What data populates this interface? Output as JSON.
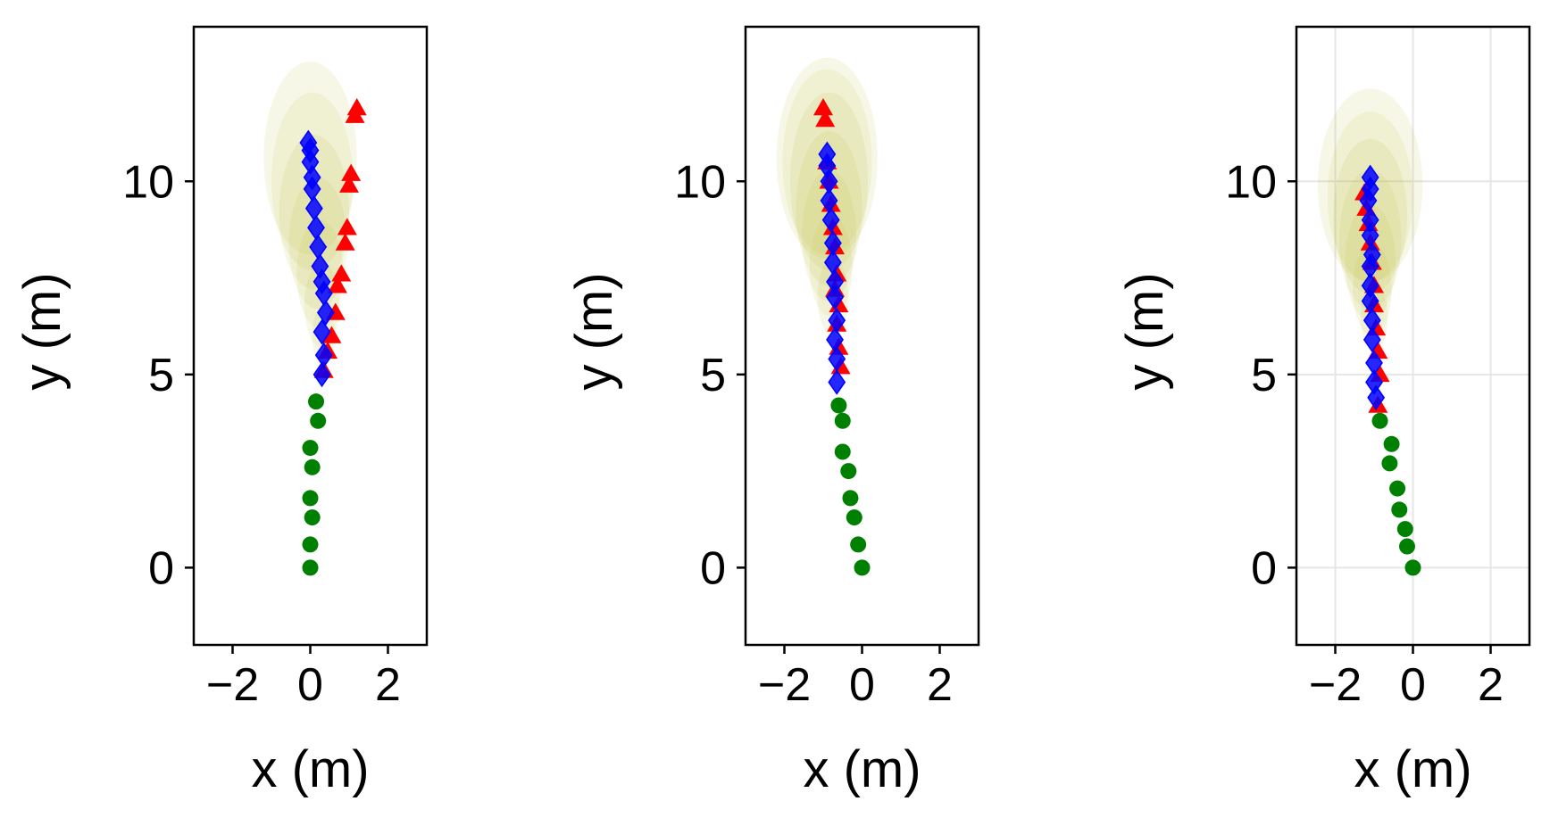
{
  "figure": {
    "background": "#ffffff",
    "colors": {
      "history": "#008000",
      "ground_truth": "#ff0000",
      "prediction": "#0000ff",
      "uncertainty": "#bdbd3a",
      "grid": "#e6e6e6"
    }
  },
  "chart_data": [
    {
      "type": "scatter",
      "xlabel": "x (m)",
      "ylabel": "y (m)",
      "xlim": [
        -3,
        3
      ],
      "ylim": [
        -2,
        14
      ],
      "xticks": [
        -2,
        0,
        2
      ],
      "xtick_labels": [
        "−2",
        "0",
        "2"
      ],
      "yticks": [
        0,
        5,
        10
      ],
      "ytick_labels": [
        "0",
        "5",
        "10"
      ],
      "grid": false,
      "series": [
        {
          "marker": "circle",
          "color": "#008000",
          "x": [
            0.0,
            0.0,
            0.05,
            0.0,
            0.05,
            0.0,
            0.2,
            0.15
          ],
          "y": [
            0.0,
            0.6,
            1.3,
            1.8,
            2.6,
            3.1,
            3.8,
            4.3
          ]
        },
        {
          "marker": "triangle",
          "color": "#ff0000",
          "x": [
            0.35,
            0.45,
            0.55,
            0.65,
            0.7,
            0.8,
            0.9,
            0.95,
            1.0,
            1.05,
            1.15,
            1.2
          ],
          "y": [
            5.1,
            5.6,
            6.0,
            6.6,
            7.3,
            7.6,
            8.4,
            8.8,
            9.9,
            10.2,
            11.7,
            11.9
          ]
        },
        {
          "marker": "diamond",
          "color": "#0000ff",
          "x": [
            0.3,
            0.35,
            0.3,
            0.4,
            0.35,
            0.3,
            0.25,
            0.2,
            0.15,
            0.1,
            0.05,
            0.05,
            0.0,
            0.0,
            -0.05
          ],
          "y": [
            5.0,
            5.5,
            6.1,
            6.6,
            7.1,
            7.4,
            7.8,
            8.3,
            8.8,
            9.3,
            9.8,
            10.1,
            10.5,
            10.8,
            11.0
          ]
        }
      ],
      "uncertainty_ellipses": [
        {
          "cx": 0.35,
          "cy": 6.0,
          "rx": 0.3,
          "ry": 0.8
        },
        {
          "cx": 0.3,
          "cy": 6.8,
          "rx": 0.45,
          "ry": 1.1
        },
        {
          "cx": 0.25,
          "cy": 7.6,
          "rx": 0.6,
          "ry": 1.4
        },
        {
          "cx": 0.2,
          "cy": 8.4,
          "rx": 0.75,
          "ry": 1.7
        },
        {
          "cx": 0.1,
          "cy": 9.2,
          "rx": 0.9,
          "ry": 2.0
        },
        {
          "cx": 0.05,
          "cy": 10.0,
          "rx": 1.05,
          "ry": 2.3
        },
        {
          "cx": 0.0,
          "cy": 10.6,
          "rx": 1.2,
          "ry": 2.5
        }
      ]
    },
    {
      "type": "scatter",
      "xlabel": "x (m)",
      "ylabel": "y (m)",
      "xlim": [
        -3,
        3
      ],
      "ylim": [
        -2,
        14
      ],
      "xticks": [
        -2,
        0,
        2
      ],
      "xtick_labels": [
        "−2",
        "0",
        "2"
      ],
      "yticks": [
        0,
        5,
        10
      ],
      "ytick_labels": [
        "0",
        "5",
        "10"
      ],
      "grid": false,
      "series": [
        {
          "marker": "circle",
          "color": "#008000",
          "x": [
            0.0,
            -0.1,
            -0.2,
            -0.3,
            -0.35,
            -0.5,
            -0.5,
            -0.6
          ],
          "y": [
            0.0,
            0.6,
            1.3,
            1.8,
            2.5,
            3.0,
            3.8,
            4.2
          ]
        },
        {
          "marker": "triangle",
          "color": "#ff0000",
          "x": [
            -0.55,
            -0.6,
            -0.65,
            -0.6,
            -0.7,
            -0.65,
            -0.7,
            -0.75,
            -0.8,
            -0.85,
            -0.9,
            -0.95,
            -1.0
          ],
          "y": [
            5.2,
            5.7,
            6.3,
            6.8,
            7.2,
            7.6,
            8.3,
            8.8,
            9.4,
            10.0,
            10.5,
            11.6,
            11.9
          ]
        },
        {
          "marker": "diamond",
          "color": "#0000ff",
          "x": [
            -0.65,
            -0.65,
            -0.7,
            -0.65,
            -0.7,
            -0.7,
            -0.75,
            -0.75,
            -0.8,
            -0.85,
            -0.85,
            -0.9,
            -0.9
          ],
          "y": [
            4.8,
            5.4,
            5.9,
            6.4,
            7.0,
            7.4,
            7.9,
            8.4,
            9.0,
            9.5,
            10.0,
            10.4,
            10.7
          ]
        }
      ],
      "uncertainty_ellipses": [
        {
          "cx": -0.75,
          "cy": 7.0,
          "rx": 0.4,
          "ry": 1.0
        },
        {
          "cx": -0.8,
          "cy": 7.8,
          "rx": 0.55,
          "ry": 1.3
        },
        {
          "cx": -0.85,
          "cy": 8.6,
          "rx": 0.7,
          "ry": 1.7
        },
        {
          "cx": -0.85,
          "cy": 9.3,
          "rx": 0.85,
          "ry": 2.0
        },
        {
          "cx": -0.85,
          "cy": 10.0,
          "rx": 1.0,
          "ry": 2.3
        },
        {
          "cx": -0.9,
          "cy": 10.5,
          "rx": 1.15,
          "ry": 2.4
        },
        {
          "cx": -0.9,
          "cy": 10.6,
          "rx": 1.3,
          "ry": 2.6
        }
      ]
    },
    {
      "type": "scatter",
      "xlabel": "x (m)",
      "ylabel": "y (m)",
      "xlim": [
        -3,
        3
      ],
      "ylim": [
        -2,
        14
      ],
      "xticks": [
        -2,
        0,
        2
      ],
      "xtick_labels": [
        "−2",
        "0",
        "2"
      ],
      "yticks": [
        0,
        5,
        10
      ],
      "ytick_labels": [
        "0",
        "5",
        "10"
      ],
      "grid": true,
      "series": [
        {
          "marker": "circle",
          "color": "#008000",
          "x": [
            0.0,
            -0.15,
            -0.2,
            -0.35,
            -0.4,
            -0.6,
            -0.55,
            -0.85
          ],
          "y": [
            0.0,
            0.55,
            1.0,
            1.5,
            2.05,
            2.7,
            3.2,
            3.8
          ]
        },
        {
          "marker": "triangle",
          "color": "#ff0000",
          "x": [
            -0.9,
            -0.85,
            -0.9,
            -0.95,
            -1.0,
            -1.0,
            -1.05,
            -1.1,
            -1.15,
            -1.2,
            -1.25
          ],
          "y": [
            4.2,
            5.0,
            5.6,
            6.2,
            6.8,
            7.3,
            7.9,
            8.4,
            8.9,
            9.3,
            9.7
          ]
        },
        {
          "marker": "diamond",
          "color": "#0000ff",
          "x": [
            -0.95,
            -1.0,
            -1.0,
            -1.05,
            -1.05,
            -1.1,
            -1.1,
            -1.1,
            -1.05,
            -1.1,
            -1.1,
            -1.15,
            -1.1,
            -1.1
          ],
          "y": [
            4.4,
            4.8,
            5.3,
            5.9,
            6.4,
            6.9,
            7.3,
            7.8,
            8.1,
            8.6,
            9.0,
            9.5,
            9.8,
            10.1
          ]
        }
      ],
      "uncertainty_ellipses": [
        {
          "cx": -1.0,
          "cy": 6.5,
          "rx": 0.35,
          "ry": 0.9
        },
        {
          "cx": -1.05,
          "cy": 7.2,
          "rx": 0.5,
          "ry": 1.2
        },
        {
          "cx": -1.1,
          "cy": 7.9,
          "rx": 0.65,
          "ry": 1.5
        },
        {
          "cx": -1.1,
          "cy": 8.5,
          "rx": 0.8,
          "ry": 1.8
        },
        {
          "cx": -1.1,
          "cy": 9.1,
          "rx": 0.95,
          "ry": 2.0
        },
        {
          "cx": -1.1,
          "cy": 9.6,
          "rx": 1.1,
          "ry": 2.2
        },
        {
          "cx": -1.1,
          "cy": 9.9,
          "rx": 1.35,
          "ry": 2.5
        }
      ]
    }
  ]
}
